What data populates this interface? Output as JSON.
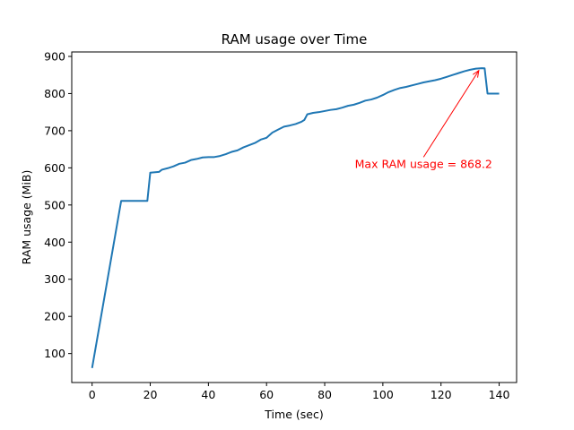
{
  "chart_data": {
    "type": "line",
    "title": "RAM usage over Time",
    "xlabel": "Time (sec)",
    "ylabel": "RAM usage (MiB)",
    "xlim": [
      -7,
      146
    ],
    "ylim": [
      22,
      912
    ],
    "xticks": [
      0,
      20,
      40,
      60,
      80,
      100,
      120,
      140
    ],
    "yticks": [
      100,
      200,
      300,
      400,
      500,
      600,
      700,
      800,
      900
    ],
    "grid": false,
    "line_color": "#1f77b4",
    "annotation": {
      "text": "Max RAM usage = 868.2",
      "color": "#ff0000",
      "point": [
        133,
        862
      ],
      "text_pos": [
        114,
        600
      ]
    },
    "series": [
      {
        "x": [
          0,
          10,
          19,
          20,
          23,
          24,
          26,
          28,
          30,
          32,
          34,
          36,
          38,
          40,
          42,
          44,
          46,
          48,
          50,
          52,
          54,
          56,
          58,
          60,
          62,
          64,
          66,
          68,
          70,
          72,
          73,
          74,
          76,
          78,
          80,
          82,
          84,
          86,
          88,
          90,
          92,
          94,
          96,
          98,
          100,
          102,
          104,
          106,
          108,
          110,
          112,
          114,
          116,
          118,
          120,
          122,
          124,
          126,
          128,
          130,
          132,
          134,
          135,
          136,
          138,
          140
        ],
        "values": [
          61,
          511,
          511,
          587,
          589,
          595,
          599,
          604,
          611,
          614,
          621,
          624,
          628,
          629,
          629,
          632,
          637,
          643,
          647,
          655,
          661,
          667,
          676,
          681,
          695,
          703,
          711,
          714,
          718,
          724,
          729,
          744,
          748,
          750,
          753,
          756,
          758,
          762,
          767,
          770,
          775,
          781,
          784,
          789,
          796,
          804,
          810,
          815,
          818,
          822,
          826,
          830,
          833,
          836,
          840,
          845,
          850,
          855,
          860,
          864,
          867,
          868.2,
          868,
          800,
          800,
          800
        ]
      }
    ]
  }
}
